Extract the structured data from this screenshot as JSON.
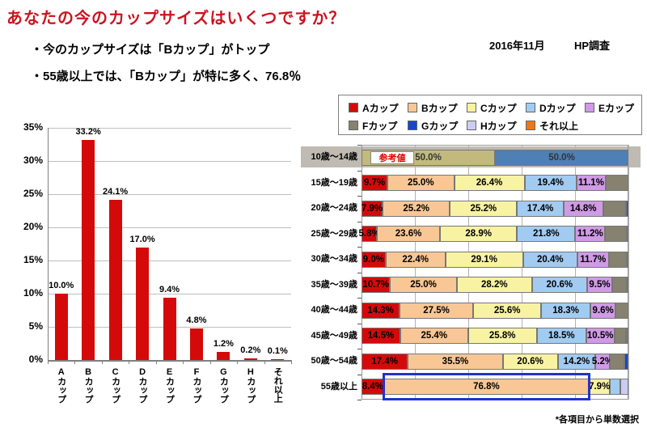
{
  "page": {
    "title": "あなたの今のカップサイズはいくつですか？",
    "bullets": [
      "・今のカップサイズは「Bカップ」がトップ",
      "・55歳以上では、「Bカップ」が特に多く、76.8％"
    ],
    "date_label": "2016年11月",
    "source_label": "HP調査",
    "footnote": "*各項目から単数選択"
  },
  "colors": {
    "title_red": "#cc1420",
    "bar_red": "#d40a0a",
    "cup_A": "#d40a0a",
    "cup_B": "#f8c795",
    "cup_C": "#f8f3a2",
    "cup_D": "#a2cbf2",
    "cup_E": "#d09ae6",
    "cup_F": "#87826f",
    "cup_G": "#1448c8",
    "cup_H": "#ccccf2",
    "cup_more": "#e8791a",
    "ref_olive": "#c1ba7c",
    "ref_blue": "#4e7fb5",
    "band_gray": "#bfbbb3",
    "highlight_blue": "#2233cc",
    "ref_note_red": "#e00000"
  },
  "chart_data": [
    {
      "type": "bar",
      "title": "",
      "categories": [
        "Aカップ",
        "Bカップ",
        "Cカップ",
        "Dカップ",
        "Eカップ",
        "Fカップ",
        "Gカップ",
        "Hカップ",
        "それ以上"
      ],
      "values": [
        10.0,
        33.2,
        24.1,
        17.0,
        9.4,
        4.8,
        1.2,
        0.2,
        0.1
      ],
      "value_labels": [
        "10.0%",
        "33.2%",
        "24.1%",
        "17.0%",
        "9.4%",
        "4.8%",
        "1.2%",
        "0.2%",
        "0.1%"
      ],
      "xlabel": "",
      "ylabel": "",
      "ylim": [
        0,
        35
      ],
      "yticks": [
        "35%",
        "30%",
        "25%",
        "20%",
        "15%",
        "10%",
        "5%",
        "0%"
      ],
      "grid": true,
      "legend_position": "none",
      "bar_color_key": "bar_red"
    },
    {
      "type": "stacked-bar-horizontal",
      "title": "",
      "xlim": [
        0,
        100
      ],
      "grid_step": 20,
      "legend_position": "top",
      "legend": [
        {
          "cup": "A",
          "label": "Aカップ"
        },
        {
          "cup": "B",
          "label": "Bカップ"
        },
        {
          "cup": "C",
          "label": "Cカップ"
        },
        {
          "cup": "D",
          "label": "Dカップ"
        },
        {
          "cup": "E",
          "label": "Eカップ"
        },
        {
          "cup": "F",
          "label": "Fカップ"
        },
        {
          "cup": "G",
          "label": "Gカップ"
        },
        {
          "cup": "H",
          "label": "Hカップ"
        },
        {
          "cup": "more",
          "label": "それ以上"
        }
      ],
      "legend_row_break": 5,
      "reference_row": {
        "label": "10歳～14歳",
        "note": "参考値",
        "segments": [
          {
            "cup": "ref_olive",
            "value": 50.0,
            "label": "50.0%"
          },
          {
            "cup": "ref_blue",
            "value": 50.0,
            "label": "50.0%"
          }
        ]
      },
      "rows": [
        {
          "label": "15歳～19歳",
          "segments": [
            {
              "cup": "A",
              "value": 9.7,
              "label": "9.7%"
            },
            {
              "cup": "B",
              "value": 25.0,
              "label": "25.0%"
            },
            {
              "cup": "C",
              "value": 26.4,
              "label": "26.4%"
            },
            {
              "cup": "D",
              "value": 19.4,
              "label": "19.4%"
            },
            {
              "cup": "E",
              "value": 11.1,
              "label": "11.1%"
            },
            {
              "cup": "F",
              "value": 8.4,
              "label": ""
            }
          ]
        },
        {
          "label": "20歳～24歳",
          "segments": [
            {
              "cup": "A",
              "value": 7.9,
              "label": "7.9%"
            },
            {
              "cup": "B",
              "value": 25.2,
              "label": "25.2%"
            },
            {
              "cup": "C",
              "value": 25.2,
              "label": "25.2%"
            },
            {
              "cup": "D",
              "value": 17.4,
              "label": "17.4%"
            },
            {
              "cup": "E",
              "value": 14.8,
              "label": "14.8%"
            },
            {
              "cup": "F",
              "value": 8.5,
              "label": ""
            },
            {
              "cup": "G",
              "value": 1.0,
              "label": ""
            }
          ]
        },
        {
          "label": "25歳～29歳",
          "segments": [
            {
              "cup": "A",
              "value": 5.8,
              "label": "5.8%"
            },
            {
              "cup": "B",
              "value": 23.6,
              "label": "23.6%"
            },
            {
              "cup": "C",
              "value": 28.9,
              "label": "28.9%"
            },
            {
              "cup": "D",
              "value": 21.8,
              "label": "21.8%"
            },
            {
              "cup": "E",
              "value": 11.2,
              "label": "11.2%"
            },
            {
              "cup": "F",
              "value": 8.2,
              "label": ""
            },
            {
              "cup": "G",
              "value": 0.5,
              "label": ""
            }
          ]
        },
        {
          "label": "30歳～34歳",
          "segments": [
            {
              "cup": "A",
              "value": 9.0,
              "label": "9.0%"
            },
            {
              "cup": "B",
              "value": 22.4,
              "label": "22.4%"
            },
            {
              "cup": "C",
              "value": 29.1,
              "label": "29.1%"
            },
            {
              "cup": "D",
              "value": 20.4,
              "label": "20.4%"
            },
            {
              "cup": "E",
              "value": 11.7,
              "label": "11.7%"
            },
            {
              "cup": "F",
              "value": 6.9,
              "label": ""
            },
            {
              "cup": "G",
              "value": 0.5,
              "label": ""
            }
          ]
        },
        {
          "label": "35歳～39歳",
          "segments": [
            {
              "cup": "A",
              "value": 10.7,
              "label": "10.7%"
            },
            {
              "cup": "B",
              "value": 25.0,
              "label": "25.0%"
            },
            {
              "cup": "C",
              "value": 28.2,
              "label": "28.2%"
            },
            {
              "cup": "D",
              "value": 20.6,
              "label": "20.6%"
            },
            {
              "cup": "E",
              "value": 9.5,
              "label": "9.5%"
            },
            {
              "cup": "F",
              "value": 5.5,
              "label": ""
            },
            {
              "cup": "G",
              "value": 0.5,
              "label": ""
            }
          ]
        },
        {
          "label": "40歳～44歳",
          "segments": [
            {
              "cup": "A",
              "value": 14.3,
              "label": "14.3%"
            },
            {
              "cup": "B",
              "value": 27.5,
              "label": "27.5%"
            },
            {
              "cup": "C",
              "value": 25.6,
              "label": "25.6%"
            },
            {
              "cup": "D",
              "value": 18.3,
              "label": "18.3%"
            },
            {
              "cup": "E",
              "value": 9.6,
              "label": "9.6%"
            },
            {
              "cup": "F",
              "value": 4.7,
              "label": ""
            }
          ]
        },
        {
          "label": "45歳～49歳",
          "segments": [
            {
              "cup": "A",
              "value": 14.5,
              "label": "14.5%"
            },
            {
              "cup": "B",
              "value": 25.4,
              "label": "25.4%"
            },
            {
              "cup": "C",
              "value": 25.8,
              "label": "25.8%"
            },
            {
              "cup": "D",
              "value": 18.5,
              "label": "18.5%"
            },
            {
              "cup": "E",
              "value": 10.5,
              "label": "10.5%"
            },
            {
              "cup": "F",
              "value": 4.3,
              "label": ""
            },
            {
              "cup": "G",
              "value": 0.5,
              "label": ""
            },
            {
              "cup": "H",
              "value": 0.5,
              "label": ""
            }
          ]
        },
        {
          "label": "50歳～54歳",
          "segments": [
            {
              "cup": "A",
              "value": 17.4,
              "label": "17.4%"
            },
            {
              "cup": "B",
              "value": 35.5,
              "label": "35.5%"
            },
            {
              "cup": "C",
              "value": 20.6,
              "label": "20.6%"
            },
            {
              "cup": "D",
              "value": 14.2,
              "label": "14.2%"
            },
            {
              "cup": "E",
              "value": 5.2,
              "label": "5.2%"
            },
            {
              "cup": "F",
              "value": 5.6,
              "label": ""
            },
            {
              "cup": "G",
              "value": 1.5,
              "label": ""
            }
          ]
        },
        {
          "label": "55歳以上",
          "segments": [
            {
              "cup": "A",
              "value": 8.4,
              "label": "8.4%"
            },
            {
              "cup": "B",
              "value": 76.8,
              "label": "76.8%"
            },
            {
              "cup": "C",
              "value": 7.9,
              "label": "7.9%"
            },
            {
              "cup": "D",
              "value": 4.0,
              "label": ""
            },
            {
              "cup": "H",
              "value": 2.9,
              "label": ""
            }
          ]
        }
      ],
      "highlight": {
        "row": "55歳以上",
        "cup": "B"
      }
    }
  ]
}
